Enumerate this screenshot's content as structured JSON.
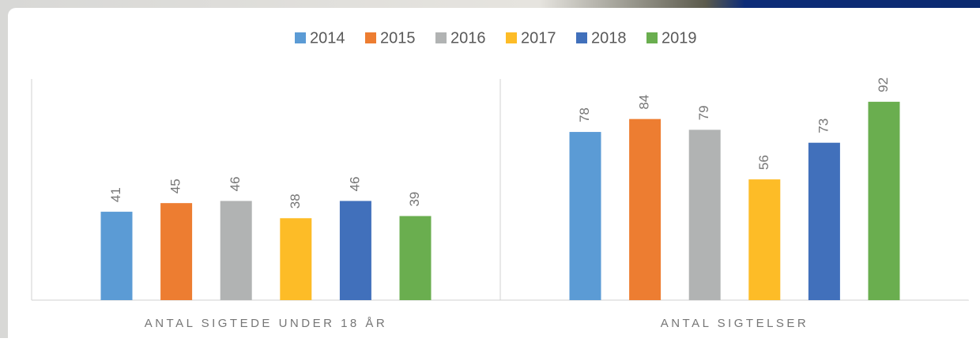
{
  "chart_data": {
    "type": "bar",
    "categories": [
      "ANTAL SIGTEDE UNDER 18 ÅR",
      "ANTAL SIGTELSER"
    ],
    "series": [
      {
        "name": "2014",
        "color": "#5b9bd5",
        "values": [
          41,
          78
        ]
      },
      {
        "name": "2015",
        "color": "#ed7d31",
        "values": [
          45,
          84
        ]
      },
      {
        "name": "2016",
        "color": "#b1b3b3",
        "values": [
          46,
          79
        ]
      },
      {
        "name": "2017",
        "color": "#fdbc27",
        "values": [
          38,
          56
        ]
      },
      {
        "name": "2018",
        "color": "#4170bb",
        "values": [
          46,
          73
        ]
      },
      {
        "name": "2019",
        "color": "#6aae4f",
        "values": [
          39,
          92
        ]
      }
    ],
    "legend": "top"
  }
}
